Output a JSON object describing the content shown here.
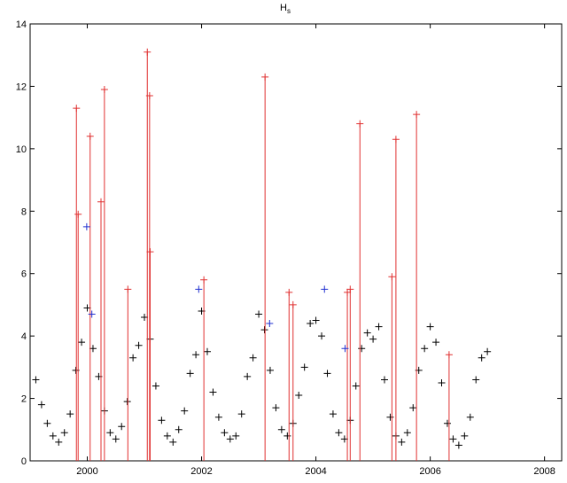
{
  "chart_data": {
    "type": "scatter",
    "title": "H",
    "title_subscript": "s",
    "xlim": [
      1999,
      2008.3
    ],
    "xticks": [
      2000,
      2002,
      2004,
      2006,
      2008
    ],
    "ylim": [
      0,
      14
    ],
    "yticks": [
      0,
      2,
      4,
      6,
      8,
      10,
      12,
      14
    ],
    "series": [
      {
        "color": "#000000",
        "marker": "+",
        "x": [
          1999.1,
          1999.2,
          1999.3,
          1999.4,
          1999.5,
          1999.6,
          1999.7,
          1999.8,
          1999.9,
          2000.0,
          2000.1,
          2000.2,
          2000.3,
          2000.4,
          2000.5,
          2000.6,
          2000.7,
          2000.8,
          2000.9,
          2001.0,
          2001.1,
          2001.2,
          2001.3,
          2001.4,
          2001.5,
          2001.6,
          2001.7,
          2001.8,
          2001.9,
          2002.0,
          2002.1,
          2002.2,
          2002.3,
          2002.4,
          2002.5,
          2002.6,
          2002.7,
          2002.8,
          2002.9,
          2003.0,
          2003.1,
          2003.2,
          2003.3,
          2003.4,
          2003.5,
          2003.6,
          2003.7,
          2003.8,
          2003.9,
          2004.0,
          2004.1,
          2004.2,
          2004.3,
          2004.4,
          2004.5,
          2004.6,
          2004.7,
          2004.8,
          2004.9,
          2005.0,
          2005.1,
          2005.2,
          2005.3,
          2005.4,
          2005.5,
          2005.6,
          2005.7,
          2005.8,
          2005.9,
          2006.0,
          2006.1,
          2006.2,
          2006.3,
          2006.4,
          2006.5,
          2006.6,
          2006.7,
          2006.8,
          2006.9,
          2007.0
        ],
        "values": [
          2.6,
          1.8,
          1.2,
          0.8,
          0.6,
          0.9,
          1.5,
          2.9,
          3.8,
          4.9,
          3.6,
          2.7,
          1.6,
          0.9,
          0.7,
          1.1,
          1.9,
          3.3,
          3.7,
          4.6,
          3.9,
          2.4,
          1.3,
          0.8,
          0.6,
          1.0,
          1.6,
          2.8,
          3.4,
          4.8,
          3.5,
          2.2,
          1.4,
          0.9,
          0.7,
          0.8,
          1.5,
          2.7,
          3.3,
          4.7,
          4.2,
          2.9,
          1.7,
          1.0,
          0.8,
          1.2,
          2.1,
          3.0,
          4.4,
          4.5,
          4.0,
          2.8,
          1.5,
          0.9,
          0.7,
          1.3,
          2.4,
          3.6,
          4.1,
          3.9,
          4.3,
          2.6,
          1.4,
          0.8,
          0.6,
          0.9,
          1.7,
          2.9,
          3.6,
          4.3,
          3.8,
          2.5,
          1.2,
          0.7,
          0.5,
          0.8,
          1.4,
          2.6,
          3.3,
          3.5
        ]
      },
      {
        "color": "#e03030",
        "marker": "+",
        "stem": true,
        "x": [
          1999.81,
          1999.84,
          2000.05,
          2000.24,
          2000.3,
          2000.71,
          2001.05,
          2001.09,
          2001.1,
          2002.04,
          2003.11,
          2003.53,
          2003.6,
          2004.55,
          2004.6,
          2004.77,
          2005.33,
          2005.4,
          2005.76,
          2006.33
        ],
        "values": [
          11.3,
          7.9,
          10.4,
          8.3,
          11.9,
          5.5,
          13.1,
          11.7,
          6.7,
          5.8,
          12.3,
          5.4,
          5.0,
          5.4,
          5.5,
          10.8,
          5.9,
          10.3,
          11.1,
          3.4
        ]
      },
      {
        "color": "#2030d0",
        "marker": "+",
        "x": [
          1999.99,
          2000.08,
          2001.95,
          2003.19,
          2004.15,
          2004.51
        ],
        "values": [
          7.5,
          4.7,
          5.5,
          4.4,
          5.5,
          3.6
        ]
      }
    ]
  }
}
